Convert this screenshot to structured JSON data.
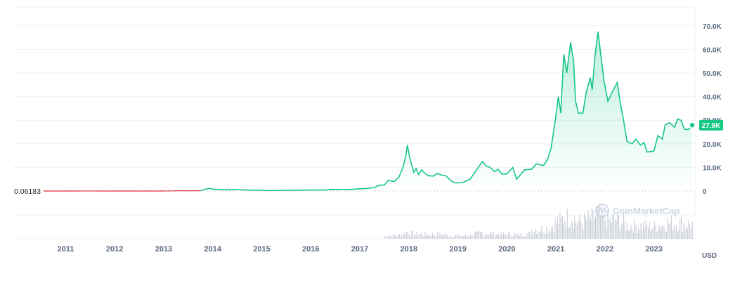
{
  "chart_data": {
    "type": "area",
    "currency": "USD",
    "base_label": "0.06183",
    "current_label": "27.9K",
    "watermark": "CoinMarketCap",
    "x_ticks": [
      "2011",
      "2012",
      "2013",
      "2014",
      "2015",
      "2016",
      "2017",
      "2018",
      "2019",
      "2020",
      "2021",
      "2022",
      "2023"
    ],
    "y_ticks": [
      "70.0K",
      "60.0K",
      "50.0K",
      "40.0K",
      "30.0K",
      "20.0K",
      "10.0K",
      "0"
    ],
    "ylim": [
      0,
      75000
    ],
    "xlim": [
      2010.55,
      2023.85
    ],
    "colors": {
      "line_up": "#16c784",
      "line_down": "#ea3943",
      "grid": "#eff2f5",
      "label_bg": "#16c784"
    },
    "series": [
      {
        "values": [
          [
            2010.55,
            0.06
          ],
          [
            2011.0,
            0.3
          ],
          [
            2011.45,
            15
          ],
          [
            2011.8,
            3
          ],
          [
            2012.0,
            5
          ],
          [
            2012.5,
            8
          ],
          [
            2012.9,
            13
          ],
          [
            2013.2,
            47
          ],
          [
            2013.3,
            140
          ],
          [
            2013.5,
            90
          ],
          [
            2013.75,
            150
          ],
          [
            2013.88,
            900
          ],
          [
            2013.93,
            1150
          ],
          [
            2014.0,
            800
          ],
          [
            2014.1,
            650
          ],
          [
            2014.25,
            500
          ],
          [
            2014.4,
            620
          ],
          [
            2014.5,
            600
          ],
          [
            2014.7,
            420
          ],
          [
            2014.85,
            360
          ],
          [
            2015.0,
            300
          ],
          [
            2015.05,
            200
          ],
          [
            2015.3,
            240
          ],
          [
            2015.6,
            270
          ],
          [
            2015.85,
            360
          ],
          [
            2016.0,
            420
          ],
          [
            2016.3,
            430
          ],
          [
            2016.45,
            650
          ],
          [
            2016.65,
            600
          ],
          [
            2016.85,
            720
          ],
          [
            2017.0,
            960
          ],
          [
            2017.15,
            1100
          ],
          [
            2017.3,
            1500
          ],
          [
            2017.4,
            2500
          ],
          [
            2017.5,
            2500
          ],
          [
            2017.58,
            4500
          ],
          [
            2017.7,
            4000
          ],
          [
            2017.8,
            6000
          ],
          [
            2017.88,
            10000
          ],
          [
            2017.94,
            15000
          ],
          [
            2017.97,
            19500
          ],
          [
            2018.02,
            14000
          ],
          [
            2018.06,
            11000
          ],
          [
            2018.1,
            8000
          ],
          [
            2018.15,
            9500
          ],
          [
            2018.2,
            7000
          ],
          [
            2018.26,
            9000
          ],
          [
            2018.33,
            7500
          ],
          [
            2018.4,
            6500
          ],
          [
            2018.5,
            6300
          ],
          [
            2018.58,
            7500
          ],
          [
            2018.66,
            6800
          ],
          [
            2018.75,
            6500
          ],
          [
            2018.88,
            4000
          ],
          [
            2018.97,
            3400
          ],
          [
            2019.1,
            3600
          ],
          [
            2019.25,
            5000
          ],
          [
            2019.35,
            8000
          ],
          [
            2019.45,
            11000
          ],
          [
            2019.5,
            12500
          ],
          [
            2019.58,
            10500
          ],
          [
            2019.66,
            10000
          ],
          [
            2019.75,
            8200
          ],
          [
            2019.82,
            9200
          ],
          [
            2019.9,
            7200
          ],
          [
            2020.0,
            7200
          ],
          [
            2020.12,
            10000
          ],
          [
            2020.2,
            5000
          ],
          [
            2020.28,
            7000
          ],
          [
            2020.36,
            9000
          ],
          [
            2020.5,
            9200
          ],
          [
            2020.6,
            11500
          ],
          [
            2020.75,
            10800
          ],
          [
            2020.83,
            13500
          ],
          [
            2020.9,
            18000
          ],
          [
            2020.98,
            29000
          ],
          [
            2021.05,
            40000
          ],
          [
            2021.1,
            33000
          ],
          [
            2021.16,
            58000
          ],
          [
            2021.22,
            50000
          ],
          [
            2021.3,
            63000
          ],
          [
            2021.36,
            55000
          ],
          [
            2021.4,
            38000
          ],
          [
            2021.46,
            33000
          ],
          [
            2021.55,
            33000
          ],
          [
            2021.62,
            42000
          ],
          [
            2021.7,
            48000
          ],
          [
            2021.74,
            43000
          ],
          [
            2021.8,
            58000
          ],
          [
            2021.86,
            67500
          ],
          [
            2021.92,
            57000
          ],
          [
            2021.98,
            47000
          ],
          [
            2022.06,
            38000
          ],
          [
            2022.15,
            42000
          ],
          [
            2022.25,
            46000
          ],
          [
            2022.3,
            39000
          ],
          [
            2022.38,
            30000
          ],
          [
            2022.45,
            21000
          ],
          [
            2022.55,
            20000
          ],
          [
            2022.63,
            22000
          ],
          [
            2022.72,
            19500
          ],
          [
            2022.8,
            20500
          ],
          [
            2022.86,
            16500
          ],
          [
            2022.95,
            16800
          ],
          [
            2023.0,
            17000
          ],
          [
            2023.08,
            23500
          ],
          [
            2023.17,
            22000
          ],
          [
            2023.23,
            28000
          ],
          [
            2023.32,
            29000
          ],
          [
            2023.42,
            27000
          ],
          [
            2023.48,
            30500
          ],
          [
            2023.55,
            30000
          ],
          [
            2023.62,
            26200
          ],
          [
            2023.7,
            26000
          ],
          [
            2023.78,
            27900
          ]
        ]
      }
    ]
  }
}
